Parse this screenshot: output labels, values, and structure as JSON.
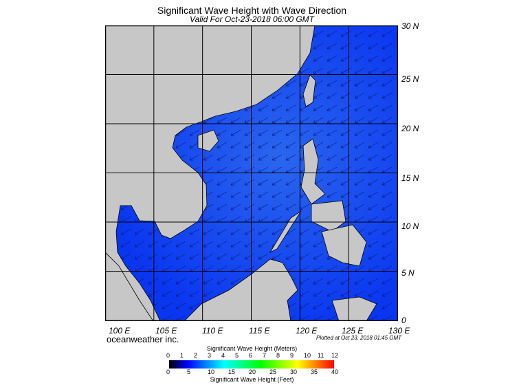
{
  "title": "Significant Wave Height with Wave Direction",
  "subtitle": "Valid For Oct-23-2018 06:00 GMT",
  "lat_labels": [
    "30 N",
    "25 N",
    "20 N",
    "15 N",
    "10 N",
    "5 N",
    "0"
  ],
  "lon_labels": [
    "100 E",
    "105 E",
    "110 E",
    "115 E",
    "120 E",
    "125 E",
    "130 E"
  ],
  "extent": {
    "lon": [
      100,
      130
    ],
    "lat": [
      0,
      30
    ]
  },
  "brand": "oceanweather inc.",
  "plotted": "Plotted at Oct 23, 2018 01:45 GMT",
  "colorbar": {
    "meters_title": "Significant Wave Height (Meters)",
    "meters_ticks": [
      "0",
      "1",
      "2",
      "3",
      "4",
      "5",
      "6",
      "7",
      "8",
      "9",
      "10",
      "11",
      "12"
    ],
    "feet_ticks": [
      "0",
      "5",
      "10",
      "15",
      "20",
      "25",
      "30",
      "35",
      "40"
    ],
    "feet_title": "Significant Wave Height (Feet)",
    "colors": [
      "#000000",
      "#0000ff",
      "#0080ff",
      "#00ffff",
      "#00ff80",
      "#00ff00",
      "#80ff00",
      "#ffff00",
      "#ff8000",
      "#ff0000"
    ]
  },
  "colors": {
    "land": "#c8c7c8",
    "sea_low": "#0a32f0",
    "sea_high": "#1a64ee"
  }
}
